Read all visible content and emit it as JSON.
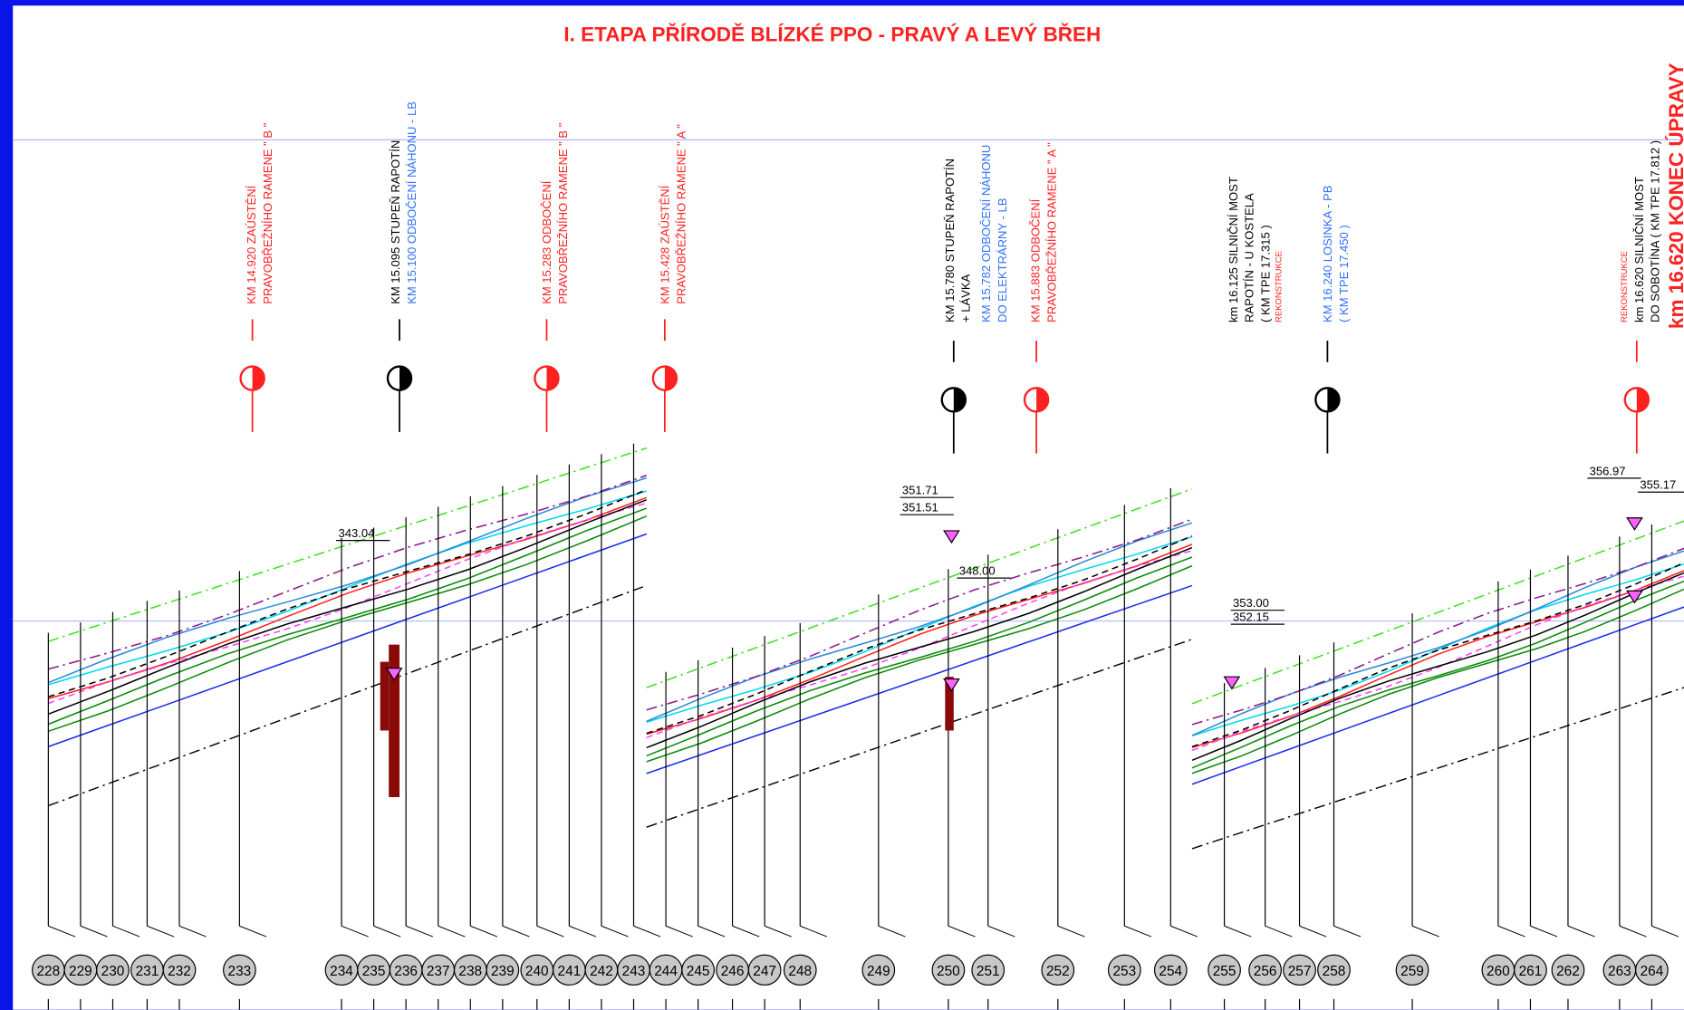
{
  "header": {
    "title": "I. ETAPA PŘÍRODĚ BLÍZKÉ PPO - PRAVÝ A LEVÝ BŘEH"
  },
  "annotations": [
    {
      "lines": [
        {
          "text": "KM 14.920 ZAÚSTĚNÍ",
          "color": "#ff2020"
        },
        {
          "text": "PRAVOBŘEŽNÍHO RAMENE \" B \"",
          "color": "#ff2020"
        }
      ]
    },
    {
      "lines": [
        {
          "text": "KM 15.095 STUPEŇ RAPOTÍN",
          "color": "#000000"
        },
        {
          "text": "KM 15.100 ODBOČENÍ NÁHONU - LB",
          "color": "#3070ff"
        }
      ]
    },
    {
      "lines": [
        {
          "text": "KM 15.283 ODBOČENÍ",
          "color": "#ff2020"
        },
        {
          "text": "PRAVOBŘEŽNÍHO RAMENE \" B \"",
          "color": "#ff2020"
        }
      ]
    },
    {
      "lines": [
        {
          "text": "KM 15.428 ZAÚSTĚNÍ",
          "color": "#ff2020"
        },
        {
          "text": "PRAVOBŘEŽNÍHO RAMENE \" A \"",
          "color": "#ff2020"
        }
      ]
    },
    {
      "lines": [
        {
          "text": "KM 15.780 STUPEŇ RAPOTÍN",
          "color": "#000000"
        },
        {
          "text": "+ LÁVKA",
          "color": "#000000"
        }
      ]
    },
    {
      "lines": [
        {
          "text": "KM 15.782 ODBOČENÍ NÁHONU",
          "color": "#3070ff"
        },
        {
          "text": "DO ELEKTRÁRNY - LB",
          "color": "#3070ff"
        }
      ]
    },
    {
      "lines": [
        {
          "text": "KM 15.883 ODBOČENÍ",
          "color": "#ff2020"
        },
        {
          "text": "PRAVOBŘEŽNÍHO RAMENE \" A \"",
          "color": "#ff2020"
        }
      ]
    },
    {
      "lines": [
        {
          "text": "km 16.125 SILNIČNÍ MOST",
          "color": "#000000"
        },
        {
          "text": "RAPOTÍN - U KOSTELA",
          "color": "#000000"
        },
        {
          "text": "( KM TPE 17.315 )",
          "color": "#000000"
        },
        {
          "text": "REKONSTRUKCE",
          "color": "#ff2020",
          "style": "small"
        }
      ]
    },
    {
      "lines": [
        {
          "text": "KM 16.240 LOSINKA - PB",
          "color": "#3070ff"
        },
        {
          "text": "( KM TPE 17.450 )",
          "color": "#3070ff"
        }
      ]
    },
    {
      "lines": [
        {
          "text": "REKONSTRUKCE",
          "color": "#ff2020",
          "style": "small"
        },
        {
          "text": "km 16.620 SILNIČNÍ MOST",
          "color": "#000000"
        },
        {
          "text": "DO SOBOTÍNA ( KM TPE 17.812 )",
          "color": "#000000"
        },
        {
          "text": "km 16.620 KONEC ÚPRAVY",
          "color": "#ff2020",
          "style": "large"
        }
      ]
    }
  ],
  "elevations": [
    "343.04",
    "351.71",
    "351.51",
    "348.00",
    "353.00",
    "352.15",
    "356.97",
    "355.17"
  ],
  "stations": [
    "228",
    "229",
    "230",
    "231",
    "232",
    "233",
    "234",
    "235",
    "236",
    "237",
    "238",
    "239",
    "240",
    "241",
    "242",
    "243",
    "244",
    "245",
    "246",
    "247",
    "248",
    "249",
    "250",
    "251",
    "252",
    "253",
    "254",
    "255",
    "256",
    "257",
    "258",
    "259",
    "260",
    "261",
    "262",
    "263",
    "264"
  ]
}
